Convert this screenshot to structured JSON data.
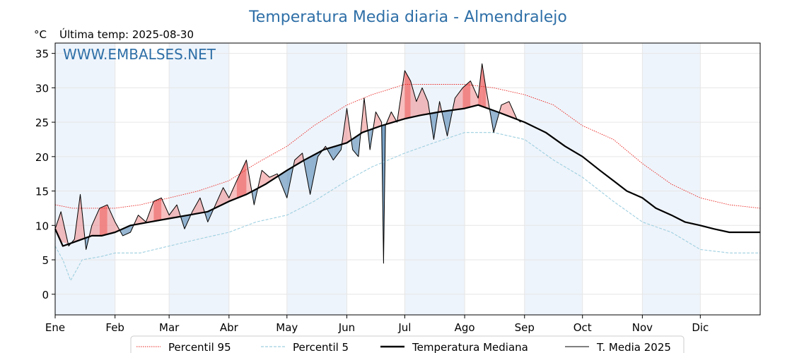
{
  "chart_data": {
    "type": "line",
    "title": "Temperatura Media diaria - Almendralejo",
    "unit": "°C",
    "last_reading": "Última temp: 2025-08-30",
    "watermark": "WWW.EMBALSES.NET",
    "ylim": [
      -3,
      36.5
    ],
    "xlim": [
      1,
      366
    ],
    "yticks": [
      0,
      5,
      10,
      15,
      20,
      25,
      30,
      35
    ],
    "months": [
      {
        "label": "Ene",
        "day": 1
      },
      {
        "label": "Feb",
        "day": 32
      },
      {
        "label": "Mar",
        "day": 60
      },
      {
        "label": "Abr",
        "day": 91
      },
      {
        "label": "May",
        "day": 121
      },
      {
        "label": "Jun",
        "day": 152
      },
      {
        "label": "Jul",
        "day": 182
      },
      {
        "label": "Ago",
        "day": 213
      },
      {
        "label": "Sep",
        "day": 244
      },
      {
        "label": "Oct",
        "day": 274
      },
      {
        "label": "Nov",
        "day": 305
      },
      {
        "label": "Dic",
        "day": 335
      }
    ],
    "grid": true,
    "legend_position": "bottom",
    "colors": {
      "p95": "#e8231f",
      "p5": "#9ecfe0",
      "median": "#000000",
      "year": "#000000",
      "above": "#f08080",
      "below": "#6a97bf",
      "band": "#eef4fb"
    },
    "series": [
      {
        "name": "Percentil 95",
        "style": "dotted",
        "x": [
          1,
          10,
          20,
          32,
          45,
          60,
          75,
          91,
          105,
          121,
          135,
          152,
          165,
          182,
          197,
          213,
          228,
          244,
          259,
          274,
          290,
          305,
          320,
          335,
          350,
          366
        ],
        "y": [
          13.0,
          12.5,
          12.5,
          12.5,
          13.0,
          14.0,
          15.0,
          16.5,
          19.0,
          21.5,
          24.5,
          27.5,
          29.0,
          30.5,
          30.5,
          30.5,
          30.0,
          29.0,
          27.5,
          24.5,
          22.5,
          19.0,
          16.0,
          14.0,
          13.0,
          12.5
        ]
      },
      {
        "name": "Percentil 5",
        "style": "dashed",
        "x": [
          1,
          5,
          9,
          15,
          25,
          32,
          45,
          60,
          75,
          91,
          105,
          121,
          135,
          152,
          165,
          182,
          197,
          213,
          228,
          244,
          259,
          274,
          290,
          305,
          320,
          335,
          350,
          366
        ],
        "y": [
          7.0,
          5.0,
          2.0,
          5.0,
          5.5,
          6.0,
          6.0,
          7.0,
          8.0,
          9.0,
          10.5,
          11.5,
          13.5,
          16.5,
          18.5,
          20.5,
          22.0,
          23.5,
          23.5,
          22.5,
          19.5,
          17.0,
          13.5,
          10.5,
          9.0,
          6.5,
          6.0,
          6.0
        ]
      },
      {
        "name": "Temperatura Mediana",
        "style": "solid-thick",
        "x": [
          1,
          5,
          10,
          15,
          20,
          25,
          32,
          40,
          50,
          60,
          70,
          80,
          91,
          100,
          110,
          121,
          130,
          140,
          152,
          160,
          170,
          182,
          190,
          200,
          213,
          220,
          230,
          244,
          255,
          265,
          274,
          283,
          290,
          297,
          305,
          312,
          320,
          327,
          335,
          342,
          350,
          358,
          366
        ],
        "y": [
          9.5,
          7.0,
          7.5,
          8.0,
          8.5,
          8.5,
          9.0,
          10.0,
          10.5,
          11.0,
          11.5,
          12.0,
          13.5,
          14.5,
          16.0,
          18.0,
          19.5,
          21.0,
          22.0,
          23.5,
          24.5,
          25.5,
          26.0,
          26.5,
          27.0,
          27.5,
          26.5,
          25.0,
          23.5,
          21.5,
          20.0,
          18.0,
          16.5,
          15.0,
          14.0,
          12.5,
          11.5,
          10.5,
          10.0,
          9.5,
          9.0,
          9.0,
          9.0
        ]
      },
      {
        "name": "T. Media 2025",
        "style": "solid-thin",
        "x": [
          1,
          4,
          8,
          11,
          14,
          17,
          20,
          24,
          28,
          32,
          36,
          40,
          44,
          48,
          52,
          56,
          60,
          64,
          68,
          72,
          76,
          80,
          84,
          88,
          91,
          95,
          100,
          104,
          108,
          112,
          116,
          121,
          125,
          129,
          133,
          137,
          141,
          145,
          149,
          152,
          155,
          158,
          161,
          164,
          167,
          170,
          171,
          172,
          175,
          178,
          182,
          185,
          188,
          191,
          194,
          197,
          200,
          204,
          208,
          212,
          216,
          220,
          222,
          224,
          228,
          232,
          236,
          240,
          242
        ],
        "y": [
          9.5,
          12.0,
          7.0,
          8.0,
          14.5,
          6.5,
          10.0,
          12.5,
          13.0,
          10.5,
          8.5,
          9.0,
          11.5,
          10.5,
          13.5,
          14.0,
          11.5,
          13.0,
          9.5,
          12.0,
          14.0,
          10.5,
          13.0,
          15.5,
          14.0,
          16.5,
          19.5,
          13.0,
          18.0,
          17.0,
          17.5,
          14.0,
          19.5,
          20.5,
          14.5,
          20.0,
          21.5,
          19.5,
          21.0,
          27.0,
          21.0,
          20.0,
          28.5,
          21.0,
          26.5,
          25.0,
          4.5,
          24.5,
          26.5,
          25.0,
          32.5,
          31.0,
          28.0,
          30.0,
          28.0,
          22.5,
          28.0,
          23.0,
          28.5,
          30.0,
          31.0,
          28.5,
          33.5,
          30.0,
          23.5,
          27.5,
          28.0,
          25.5,
          25.0
        ]
      }
    ],
    "legend": [
      {
        "key": "p95",
        "label": "Percentil 95"
      },
      {
        "key": "p5",
        "label": "Percentil 5"
      },
      {
        "key": "median",
        "label": "Temperatura Mediana"
      },
      {
        "key": "year",
        "label": "T. Media 2025"
      }
    ]
  }
}
